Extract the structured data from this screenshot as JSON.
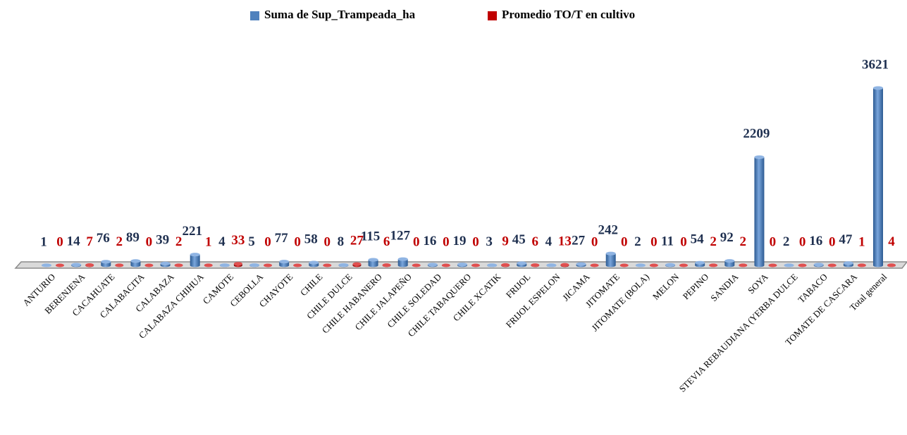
{
  "chart_data": {
    "type": "bar3d",
    "categories": [
      "ANTURIO",
      "BERENJENA",
      "CACAHUATE",
      "CALABACITA",
      "CALABAZA",
      "CALABAZA CHIHUA",
      "CAMOTE",
      "CEBOLLA",
      "CHAYOTE",
      "CHILE",
      "CHILE DULCE",
      "CHILE HABANERO",
      "CHILE JALAPEÑO",
      "CHILE SOLEDAD",
      "CHILE TABAQUERO",
      "CHILE XCATIK",
      "FRIJOL",
      "FRIJOL ESPELON",
      "JICAMA",
      "JITOMATE",
      "JITOMATE (BOLA)",
      "MELON",
      "PEPINO",
      "SANDIA",
      "SOYA",
      "STEVIA REBAUDIANA (YERBA DULCE",
      "TABACO",
      "TOMATE DE CASCARA",
      "Total general"
    ],
    "series": [
      {
        "name": "Suma de Sup_Trampeada_ha",
        "color": "#4f81bd",
        "label_color": "#1f3050",
        "values": [
          1,
          14,
          76,
          89,
          39,
          221,
          4,
          5,
          77,
          58,
          8,
          115,
          127,
          16,
          19,
          3,
          45,
          4,
          27,
          242,
          2,
          11,
          54,
          92,
          2209,
          2,
          16,
          47,
          3621
        ]
      },
      {
        "name": "Promedio TO/T en cultivo",
        "color": "#c00000",
        "label_color": "#c00000",
        "values": [
          0,
          7,
          2,
          0,
          2,
          1,
          33,
          0,
          0,
          0,
          27,
          6,
          0,
          0,
          0,
          9,
          6,
          13,
          0,
          0,
          0,
          0,
          2,
          2,
          0,
          0,
          0,
          1,
          4
        ]
      }
    ],
    "legend": "top"
  }
}
